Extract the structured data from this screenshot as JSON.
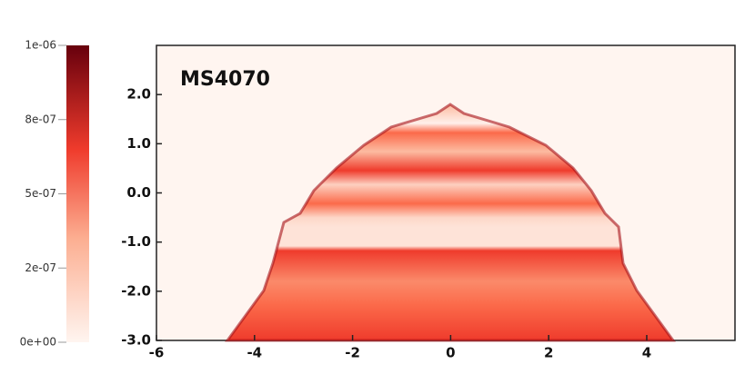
{
  "chart_data": {
    "type": "heatmap",
    "annotation": "MS4070",
    "xlim": [
      -6,
      5.8
    ],
    "xticks": [
      -6,
      -4,
      -2,
      0,
      2,
      4
    ],
    "ylim": [
      -3,
      3
    ],
    "yticks": [
      {
        "value": -3,
        "label": "-3.0"
      },
      {
        "value": -2,
        "label": "-2.0"
      },
      {
        "value": -1,
        "label": "-1.0"
      },
      {
        "value": 0,
        "label": "0.0"
      },
      {
        "value": 1,
        "label": "1.0"
      },
      {
        "value": 2,
        "label": "2.0"
      }
    ],
    "colorbar": {
      "lim": [
        0,
        1e-06
      ],
      "ticks": [
        {
          "value": 1e-06,
          "label": "1e-06"
        },
        {
          "value": 7.5e-07,
          "label": "8e-07"
        },
        {
          "value": 5e-07,
          "label": "5e-07"
        },
        {
          "value": 2.5e-07,
          "label": "2e-07"
        },
        {
          "value": 0,
          "label": "0e+00"
        }
      ]
    }
  }
}
